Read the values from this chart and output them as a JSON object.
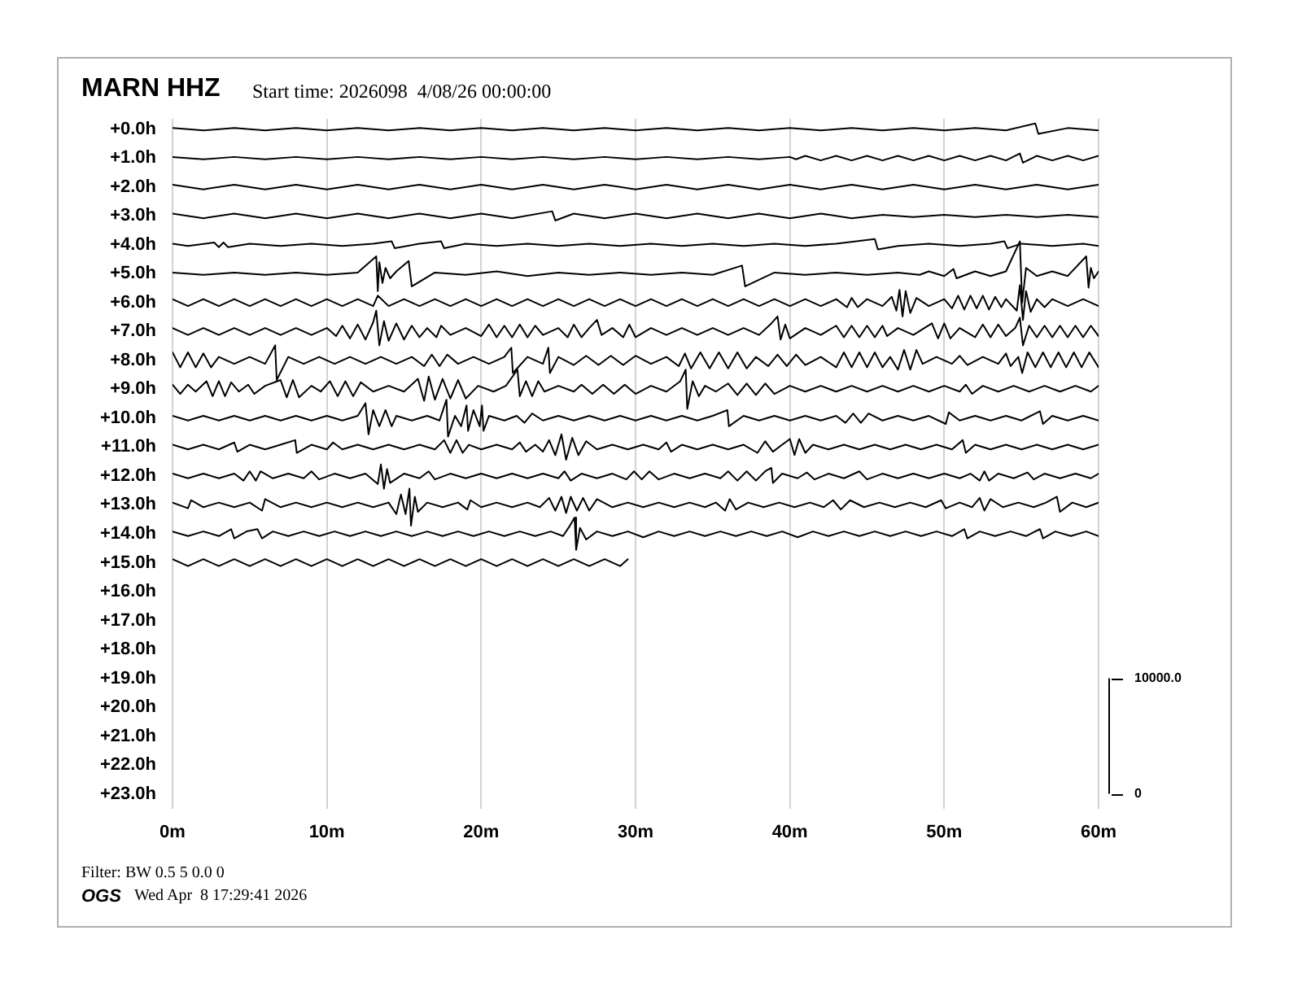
{
  "chart_data": {
    "type": "line",
    "title": "MARN HHZ",
    "subtitle": "Start time: 2026098  4/08/26 00:00:00",
    "annotations": [
      "Filter: BW 0.5 5 0.0 0",
      "OGS",
      "Wed Apr  8 17:29:41 2026"
    ],
    "xlim": [
      0,
      60
    ],
    "xticks": [
      {
        "value": 0,
        "label": "0m"
      },
      {
        "value": 10,
        "label": "10m"
      },
      {
        "value": 20,
        "label": "20m"
      },
      {
        "value": 30,
        "label": "30m"
      },
      {
        "value": 40,
        "label": "40m"
      },
      {
        "value": 50,
        "label": "50m"
      },
      {
        "value": 60,
        "label": "60m"
      }
    ],
    "ylim": [
      23.52,
      -0.36
    ],
    "yticks": [
      {
        "value": 0,
        "label": "+0.0h"
      },
      {
        "value": 1,
        "label": "+1.0h"
      },
      {
        "value": 2,
        "label": "+2.0h"
      },
      {
        "value": 3,
        "label": "+3.0h"
      },
      {
        "value": 4,
        "label": "+4.0h"
      },
      {
        "value": 5,
        "label": "+5.0h"
      },
      {
        "value": 6,
        "label": "+6.0h"
      },
      {
        "value": 7,
        "label": "+7.0h"
      },
      {
        "value": 8,
        "label": "+8.0h"
      },
      {
        "value": 9,
        "label": "+9.0h"
      },
      {
        "value": 10,
        "label": "+10.0h"
      },
      {
        "value": 11,
        "label": "+11.0h"
      },
      {
        "value": 12,
        "label": "+12.0h"
      },
      {
        "value": 13,
        "label": "+13.0h"
      },
      {
        "value": 14,
        "label": "+14.0h"
      },
      {
        "value": 15,
        "label": "+15.0h"
      },
      {
        "value": 16,
        "label": "+16.0h"
      },
      {
        "value": 17,
        "label": "+17.0h"
      },
      {
        "value": 18,
        "label": "+18.0h"
      },
      {
        "value": 19,
        "label": "+19.0h"
      },
      {
        "value": 20,
        "label": "+20.0h"
      },
      {
        "value": 21,
        "label": "+21.0h"
      },
      {
        "value": 22,
        "label": "+22.0h"
      },
      {
        "value": 23,
        "label": "+23.0h"
      }
    ],
    "y2lim": [
      -1300,
      58400
    ],
    "y2ticks": [
      0,
      {
        "value": 10000,
        "label": "10000.0"
      }
    ],
    "grid": "x",
    "series": [
      {
        "color": "#000000",
        "axis": "y2",
        "x": [
          0,
          2,
          4,
          6,
          8,
          10,
          12,
          14,
          16,
          18,
          20,
          22,
          24,
          26,
          28,
          30,
          32,
          34,
          36,
          38,
          40,
          42,
          44,
          46,
          48,
          50,
          52,
          54,
          55.9,
          56.1,
          58,
          60
        ],
        "values": [
          57600,
          57400,
          57600,
          57400,
          57600,
          57400,
          57600,
          57400,
          57600,
          57400,
          57600,
          57400,
          57600,
          57400,
          57600,
          57400,
          57600,
          57400,
          57600,
          57400,
          57600,
          57400,
          57600,
          57400,
          57600,
          57400,
          57600,
          57400,
          58000,
          57100,
          57600,
          57400
        ]
      },
      {
        "color": "#000000",
        "axis": "y2",
        "x": [
          0,
          2,
          4,
          6,
          8,
          10,
          12,
          14,
          16,
          18,
          20,
          22,
          24,
          26,
          28,
          30,
          32,
          34,
          36,
          38,
          40,
          40.4,
          41,
          42,
          43,
          44,
          45,
          46,
          47,
          48,
          49,
          50,
          51,
          52,
          53,
          54,
          54.9,
          55.1,
          56,
          57,
          58,
          59,
          60
        ],
        "values": [
          55100,
          54900,
          55100,
          54900,
          55100,
          54900,
          55100,
          54900,
          55100,
          54900,
          55100,
          54900,
          55100,
          54900,
          55100,
          54900,
          55100,
          54900,
          55100,
          54900,
          55100,
          54900,
          55200,
          54800,
          55200,
          54800,
          55200,
          54800,
          55200,
          54800,
          55200,
          54800,
          55200,
          54800,
          55200,
          54800,
          55400,
          54600,
          55200,
          54800,
          55200,
          54800,
          55200
        ]
      },
      {
        "color": "#000000",
        "axis": "y2",
        "x": [
          0,
          2,
          4,
          6,
          8,
          10,
          12,
          14,
          16,
          18,
          20,
          22,
          24,
          26,
          28,
          30,
          32,
          34,
          36,
          38,
          40,
          42,
          44,
          46,
          48,
          50,
          52,
          54,
          56,
          58,
          60
        ],
        "values": [
          52700,
          52300,
          52700,
          52300,
          52700,
          52300,
          52700,
          52300,
          52700,
          52300,
          52700,
          52300,
          52700,
          52300,
          52700,
          52300,
          52700,
          52300,
          52700,
          52300,
          52700,
          52300,
          52700,
          52300,
          52700,
          52300,
          52700,
          52300,
          52700,
          52300,
          52700
        ]
      },
      {
        "color": "#000000",
        "axis": "y2",
        "x": [
          0,
          2,
          4,
          6,
          8,
          10,
          12,
          14,
          16,
          18,
          20,
          22,
          24.6,
          24.8,
          26,
          28,
          30,
          32,
          34,
          36,
          38,
          40,
          42,
          44,
          46,
          48,
          50,
          52,
          54,
          56,
          58,
          60
        ],
        "values": [
          50200,
          49800,
          50200,
          49800,
          50200,
          49800,
          50200,
          49800,
          50200,
          49800,
          50200,
          49800,
          50400,
          49600,
          50200,
          49800,
          50200,
          49800,
          50200,
          49800,
          50200,
          49800,
          50200,
          49800,
          50100,
          49900,
          50100,
          49900,
          50100,
          49900,
          50100,
          49900
        ]
      },
      {
        "color": "#000000",
        "axis": "y2",
        "x": [
          0,
          1,
          2.7,
          3,
          3.3,
          3.6,
          5,
          7,
          9,
          11,
          13,
          14.2,
          14.4,
          16,
          17.4,
          17.6,
          19,
          21,
          23,
          25,
          27,
          29,
          31,
          33,
          35,
          37,
          39,
          41,
          43,
          45.5,
          45.7,
          47,
          49,
          51,
          53,
          53.9,
          54.1,
          55,
          57,
          59,
          60
        ],
        "values": [
          47600,
          47400,
          47700,
          47300,
          47700,
          47300,
          47600,
          47400,
          47600,
          47400,
          47600,
          47800,
          47200,
          47600,
          47800,
          47200,
          47600,
          47400,
          47600,
          47400,
          47600,
          47400,
          47600,
          47400,
          47600,
          47400,
          47600,
          47400,
          47600,
          48000,
          47100,
          47400,
          47600,
          47400,
          47600,
          47800,
          47200,
          47600,
          47400,
          47600,
          47400
        ]
      },
      {
        "color": "#000000",
        "axis": "y2",
        "x": [
          0,
          2,
          4,
          6,
          8,
          10,
          12,
          13.2,
          13.3,
          13.4,
          13.6,
          13.8,
          14.1,
          14.5,
          15.3,
          15.5,
          17,
          19,
          21,
          23,
          25,
          27,
          29,
          31,
          33,
          35,
          36.9,
          37.1,
          39,
          41,
          43,
          45,
          47,
          48.4,
          49,
          50,
          50.6,
          50.8,
          52,
          53,
          54,
          54.9,
          55.05,
          55.3,
          56,
          57,
          58,
          59.2,
          59.35,
          59.5,
          59.7,
          60
        ],
        "values": [
          45100,
          44900,
          45100,
          44900,
          45100,
          44900,
          45100,
          46500,
          43500,
          46000,
          44200,
          45500,
          44600,
          45200,
          46100,
          43900,
          45100,
          44900,
          45200,
          44800,
          45100,
          44900,
          45100,
          44900,
          45100,
          44900,
          45700,
          43900,
          45100,
          44900,
          45100,
          44900,
          45100,
          44900,
          45200,
          44800,
          45400,
          44600,
          45200,
          44800,
          45200,
          47800,
          42500,
          45500,
          44800,
          45200,
          44800,
          46500,
          43800,
          45500,
          44600,
          45200
        ]
      },
      {
        "color": "#000000",
        "axis": "y2",
        "x": [
          0,
          1,
          2,
          3,
          4,
          5,
          6,
          7,
          8,
          9,
          10,
          11,
          12,
          13,
          13.3,
          14,
          15,
          16,
          17,
          18,
          19,
          20,
          21,
          22,
          23,
          24,
          25,
          26,
          27,
          28,
          29,
          30,
          31,
          32,
          33,
          34,
          35,
          36,
          37,
          38,
          39,
          40,
          41,
          42,
          43,
          43.7,
          44,
          44.4,
          45,
          46,
          46.6,
          46.9,
          47.1,
          47.3,
          47.5,
          47.8,
          48.2,
          49,
          50,
          50.5,
          50.9,
          51.3,
          51.7,
          52.1,
          52.5,
          52.9,
          53.3,
          53.7,
          54,
          54.7,
          54.9,
          55.1,
          55.3,
          55.6,
          56,
          56.5,
          57,
          58,
          59,
          60
        ],
        "values": [
          42800,
          42200,
          42800,
          42200,
          42800,
          42200,
          42800,
          42200,
          42800,
          42200,
          42800,
          42200,
          42800,
          42200,
          43100,
          42200,
          42800,
          42200,
          42800,
          42200,
          42800,
          42200,
          42800,
          42200,
          42800,
          42200,
          42800,
          42200,
          42800,
          42200,
          42800,
          42200,
          42800,
          42200,
          42800,
          42200,
          42800,
          42200,
          42800,
          42200,
          42800,
          42200,
          42800,
          42200,
          42800,
          42100,
          42900,
          42100,
          42800,
          42200,
          43000,
          41800,
          43600,
          41300,
          43500,
          41600,
          42900,
          42200,
          42800,
          42000,
          43100,
          41900,
          43100,
          42000,
          43100,
          41900,
          43000,
          42100,
          42800,
          41800,
          44000,
          41000,
          43500,
          41700,
          42800,
          42100,
          42800,
          42200,
          42800,
          42200
        ]
      },
      {
        "color": "#000000",
        "axis": "y2",
        "x": [
          0,
          1,
          2,
          3,
          4,
          5,
          6,
          7,
          8,
          9,
          10,
          10.6,
          11,
          11.5,
          12,
          12.5,
          13,
          13.2,
          13.4,
          13.7,
          14,
          14.5,
          15,
          15.5,
          16,
          16.5,
          17.1,
          17.4,
          18,
          19,
          20,
          20.5,
          21,
          21.5,
          22,
          22.5,
          23,
          23.5,
          24,
          25,
          25.6,
          26,
          26.5,
          27,
          27.5,
          27.8,
          28.5,
          29.2,
          29.6,
          30,
          31,
          32,
          33,
          34,
          35,
          36,
          37,
          38,
          38.8,
          39.2,
          39.4,
          39.7,
          40,
          41,
          42,
          43,
          43.5,
          44,
          44.5,
          45,
          45.5,
          46,
          46.3,
          47,
          48,
          49.2,
          49.6,
          50,
          50.4,
          51,
          52,
          52.5,
          53,
          53.5,
          54,
          54.6,
          54.9,
          55.1,
          55.5,
          56,
          56.5,
          57,
          57.5,
          58,
          58.5,
          59,
          59.5,
          60
        ],
        "values": [
          40300,
          39700,
          40300,
          39700,
          40300,
          39700,
          40300,
          39700,
          40300,
          39700,
          40300,
          39600,
          40500,
          39400,
          40600,
          39300,
          40800,
          41800,
          38800,
          40900,
          39200,
          40700,
          39300,
          40500,
          39500,
          40300,
          39500,
          40500,
          39700,
          40300,
          39600,
          40600,
          39500,
          40500,
          39500,
          40600,
          39500,
          40500,
          39700,
          40300,
          39500,
          40600,
          39500,
          40300,
          41000,
          39700,
          40300,
          39500,
          40600,
          39500,
          40300,
          39700,
          40300,
          39700,
          40300,
          39700,
          40300,
          39700,
          40700,
          41300,
          39300,
          40600,
          39400,
          40300,
          39700,
          40500,
          39500,
          40500,
          39500,
          40500,
          39500,
          40500,
          39600,
          40300,
          39700,
          40700,
          39400,
          40700,
          39400,
          40300,
          39500,
          40600,
          39500,
          40600,
          39600,
          40300,
          41200,
          38800,
          40500,
          39500,
          40500,
          39500,
          40500,
          39500,
          40500,
          39500,
          40500,
          39600
        ]
      },
      {
        "color": "#000000",
        "axis": "y2",
        "x": [
          0,
          0.5,
          1,
          1.5,
          2,
          2.5,
          3,
          4,
          5,
          6,
          6.65,
          6.75,
          7.5,
          8.5,
          9.5,
          10.5,
          11.5,
          12.5,
          13.5,
          14.5,
          15.5,
          16.3,
          16.8,
          17.3,
          17.8,
          18.5,
          19.5,
          20.5,
          21.5,
          21.95,
          22.05,
          23,
          24,
          24.35,
          24.45,
          25,
          26,
          26.8,
          27.6,
          28.4,
          29.2,
          30,
          31,
          32,
          32.8,
          33.2,
          33.6,
          34.2,
          34.8,
          35.4,
          36,
          36.6,
          37.2,
          37.8,
          38.6,
          39.2,
          39.8,
          40.4,
          41,
          42,
          43,
          43.5,
          44,
          44.5,
          45,
          45.5,
          46,
          46.5,
          47,
          47.4,
          47.8,
          48.2,
          48.6,
          49.5,
          50.5,
          51,
          51.5,
          52.5,
          53.5,
          54,
          54.3,
          54.8,
          55.05,
          55.4,
          55.9,
          56.4,
          56.9,
          57.4,
          57.9,
          58.4,
          58.9,
          59.4,
          60
        ],
        "values": [
          38200,
          36900,
          38200,
          36900,
          38100,
          36900,
          37800,
          37200,
          37800,
          37200,
          38800,
          35800,
          37800,
          37200,
          37800,
          37200,
          37800,
          37200,
          37800,
          37200,
          37800,
          37000,
          38000,
          37000,
          38000,
          37200,
          37800,
          37200,
          37800,
          38600,
          36400,
          37800,
          37200,
          38600,
          36400,
          37800,
          37100,
          37900,
          37100,
          37900,
          37100,
          37900,
          37200,
          37800,
          37000,
          38100,
          36800,
          38200,
          36800,
          38200,
          36800,
          38200,
          36800,
          37800,
          37000,
          38000,
          37000,
          38000,
          37100,
          37800,
          36900,
          38200,
          36900,
          38200,
          36900,
          38200,
          36900,
          37800,
          36700,
          38400,
          36700,
          38400,
          37200,
          37800,
          37200,
          37900,
          37100,
          37800,
          37200,
          38100,
          37000,
          37800,
          36400,
          38200,
          36900,
          38200,
          36900,
          38200,
          36900,
          38200,
          36900,
          38200,
          36900
        ]
      },
      {
        "color": "#000000",
        "axis": "y2",
        "x": [
          0,
          0.5,
          1,
          1.5,
          2.2,
          2.6,
          3,
          3.4,
          3.8,
          4.3,
          4.9,
          5.3,
          6,
          7,
          7.4,
          7.8,
          8.2,
          9,
          9.6,
          10.2,
          10.7,
          11.2,
          11.7,
          12.2,
          13,
          14,
          15,
          15.9,
          16.3,
          16.6,
          17,
          17.5,
          18,
          18.5,
          19,
          19.8,
          20.8,
          21.6,
          22.35,
          22.5,
          22.9,
          23.3,
          23.7,
          24.1,
          25,
          26,
          26.5,
          27.2,
          27.9,
          28.6,
          29.3,
          30,
          31,
          32,
          32.9,
          33.25,
          33.35,
          33.7,
          34.1,
          34.5,
          35.2,
          36,
          36.6,
          37.2,
          37.8,
          38.4,
          39,
          40,
          41,
          42,
          43,
          44,
          45,
          46,
          47,
          48,
          49,
          50,
          51,
          51.4,
          51.8,
          52.5,
          53.5,
          54.5,
          55.5,
          56.5,
          57.5,
          58.5,
          59.5,
          60
        ],
        "values": [
          35400,
          34600,
          35400,
          34800,
          35700,
          34400,
          35700,
          34400,
          35600,
          34800,
          35400,
          34600,
          35300,
          35800,
          34300,
          35800,
          34300,
          35300,
          34800,
          35700,
          34400,
          35700,
          34400,
          35600,
          34800,
          35300,
          34800,
          35900,
          34000,
          36100,
          34100,
          35900,
          34200,
          35800,
          34200,
          35300,
          34800,
          35300,
          36700,
          34400,
          35700,
          34400,
          35700,
          34800,
          35300,
          34800,
          35400,
          34600,
          35400,
          34600,
          35400,
          34600,
          35300,
          34800,
          35700,
          36700,
          33300,
          35700,
          34400,
          35300,
          34800,
          35500,
          34500,
          35500,
          34500,
          35500,
          34600,
          35300,
          34800,
          35300,
          34800,
          35300,
          34800,
          35300,
          34800,
          35300,
          34800,
          35300,
          34800,
          35400,
          34600,
          35300,
          34800,
          35300,
          34800,
          35300,
          34800,
          35300,
          34800,
          35300
        ]
      },
      {
        "color": "#000000",
        "axis": "y2",
        "x": [
          0,
          1,
          2,
          3,
          4,
          5,
          6,
          7,
          8,
          9,
          10,
          11,
          12,
          12.5,
          12.7,
          13,
          13.4,
          13.8,
          14.2,
          14.5,
          15.5,
          16.5,
          17.3,
          17.75,
          17.85,
          18.3,
          18.7,
          19.05,
          19.15,
          19.5,
          19.9,
          20.05,
          20.15,
          20.5,
          21.5,
          22.3,
          22.8,
          23.3,
          24,
          25,
          26,
          27,
          28,
          29,
          30,
          31,
          32,
          33,
          34,
          35,
          35.95,
          36.05,
          37,
          38,
          39,
          40,
          41,
          42,
          43,
          43.6,
          44.1,
          44.6,
          45.1,
          46,
          47,
          48,
          49,
          50.1,
          50.3,
          51,
          52,
          53,
          54,
          55,
          56.2,
          56.4,
          57,
          58,
          59,
          60
        ],
        "values": [
          32700,
          32300,
          32700,
          32300,
          32700,
          32300,
          32700,
          32300,
          32700,
          32300,
          32700,
          32300,
          32700,
          33800,
          31100,
          33200,
          31800,
          33200,
          31800,
          32700,
          32300,
          32700,
          32300,
          34100,
          30900,
          32700,
          31800,
          33600,
          31400,
          33200,
          31800,
          33600,
          31400,
          32700,
          32300,
          32700,
          32100,
          32900,
          32300,
          32700,
          32300,
          32700,
          32300,
          32700,
          32300,
          32700,
          32300,
          32700,
          32300,
          32700,
          33200,
          31800,
          32700,
          32300,
          32700,
          32300,
          32700,
          32300,
          32700,
          32100,
          32900,
          32100,
          32900,
          32300,
          32700,
          32300,
          32700,
          32000,
          33000,
          32300,
          32700,
          32300,
          32700,
          32300,
          33100,
          32000,
          32700,
          32300,
          32700,
          32300
        ]
      },
      {
        "color": "#000000",
        "axis": "y2",
        "x": [
          0,
          1,
          2,
          3,
          4,
          4.2,
          5,
          6,
          7,
          7.95,
          8.05,
          9,
          10,
          10.4,
          11,
          12,
          13,
          14,
          15,
          16,
          17,
          17.6,
          18,
          18.4,
          18.8,
          19.2,
          20,
          21,
          22,
          22.5,
          22.9,
          23.5,
          24,
          24.4,
          24.8,
          25.2,
          25.5,
          25.9,
          26.3,
          26.8,
          27.5,
          28.5,
          29.5,
          30.5,
          31.5,
          32,
          32.3,
          33,
          34,
          35,
          36,
          37,
          37.9,
          38.4,
          38.9,
          39.5,
          40,
          40.3,
          40.6,
          41,
          41.5,
          42.5,
          43.5,
          44.5,
          45.5,
          46.5,
          47.5,
          48.5,
          49.5,
          50.5,
          51.2,
          51.4,
          52,
          53,
          54,
          55,
          56,
          57,
          58,
          59,
          60
        ],
        "values": [
          30200,
          29800,
          30200,
          29800,
          30400,
          29600,
          30200,
          29800,
          30200,
          30600,
          29500,
          30200,
          29800,
          30400,
          29800,
          30200,
          29800,
          30200,
          29800,
          30200,
          29800,
          30600,
          29500,
          30600,
          29500,
          30200,
          29800,
          30200,
          29800,
          30400,
          29600,
          30200,
          29600,
          30600,
          29300,
          31100,
          28900,
          30800,
          29300,
          30500,
          29800,
          30200,
          29800,
          30200,
          29800,
          30400,
          29600,
          30200,
          29800,
          30200,
          29800,
          30200,
          29500,
          30500,
          29600,
          30200,
          30700,
          29300,
          30700,
          29500,
          30200,
          29800,
          30200,
          29800,
          30200,
          29800,
          30200,
          29800,
          30200,
          29800,
          30600,
          29500,
          30200,
          29800,
          30200,
          29800,
          30200,
          29800,
          30200,
          29800,
          30200
        ]
      },
      {
        "color": "#000000",
        "axis": "y2",
        "x": [
          0,
          1,
          2,
          3,
          4,
          4.6,
          5,
          5.4,
          5.7,
          6.5,
          7.5,
          8.5,
          9,
          9.5,
          10.5,
          11.5,
          12.5,
          13.3,
          13.5,
          13.7,
          13.9,
          14.1,
          15,
          16,
          16.6,
          17,
          18,
          19,
          20,
          21,
          22,
          23,
          24,
          25,
          25.4,
          25.8,
          26.5,
          27.5,
          28.5,
          29.4,
          29.9,
          30.4,
          30.9,
          31.5,
          32.5,
          33.5,
          34.5,
          35.5,
          36,
          36.6,
          37.2,
          37.8,
          38.4,
          38.8,
          38.9,
          39.5,
          40.5,
          41.1,
          41.6,
          42.5,
          43.5,
          44.5,
          45,
          46,
          47,
          48,
          49,
          50,
          51,
          51.7,
          52.3,
          52.6,
          52.9,
          53.5,
          54.5,
          55.4,
          55.8,
          56.5,
          57.5,
          58.5,
          59.5,
          60
        ],
        "values": [
          27700,
          27300,
          27700,
          27300,
          27700,
          27100,
          27900,
          27100,
          27900,
          27300,
          27700,
          27300,
          27900,
          27200,
          27700,
          27300,
          27700,
          26800,
          28500,
          26400,
          28100,
          26900,
          27700,
          27300,
          27900,
          27200,
          27700,
          27300,
          27700,
          27300,
          27700,
          27300,
          27700,
          27300,
          27900,
          27100,
          27700,
          27300,
          27700,
          27200,
          27900,
          27200,
          27900,
          27200,
          27700,
          27300,
          27700,
          27300,
          27900,
          27100,
          27900,
          27100,
          27900,
          28200,
          26900,
          27700,
          27300,
          27800,
          27200,
          27700,
          27300,
          27900,
          27200,
          27700,
          27300,
          27700,
          27300,
          27700,
          27300,
          27700,
          27100,
          27900,
          27100,
          27700,
          27300,
          27800,
          27200,
          27700,
          27300,
          27700,
          27300,
          27700
        ]
      },
      {
        "color": "#000000",
        "axis": "y2",
        "x": [
          0,
          1,
          1.2,
          2,
          3,
          4,
          5,
          5.8,
          6,
          7,
          8,
          9,
          10,
          11,
          12,
          13,
          14,
          14.5,
          14.8,
          15.1,
          15.35,
          15.45,
          15.7,
          15.9,
          16.5,
          17.5,
          18.5,
          19.1,
          19.3,
          20,
          21,
          22,
          23,
          23.8,
          24.4,
          24.8,
          25.2,
          25.5,
          25.8,
          26.2,
          26.6,
          27,
          27.5,
          28.5,
          29.5,
          30.5,
          31.5,
          32.5,
          33.5,
          34.5,
          35.2,
          35.8,
          36.1,
          36.5,
          37.3,
          38.3,
          39.3,
          40.3,
          41.3,
          42.2,
          42.8,
          43.3,
          43.9,
          44.8,
          45.8,
          46.8,
          47.8,
          48.8,
          49.8,
          50.1,
          51,
          51.8,
          52.3,
          52.6,
          53,
          53.8,
          54.8,
          55.8,
          56.6,
          57.3,
          57.5,
          58.3,
          59.2,
          60
        ],
        "values": [
          25200,
          24700,
          25400,
          24800,
          25200,
          24800,
          25200,
          24500,
          25500,
          24800,
          25200,
          24800,
          25200,
          24800,
          25200,
          24800,
          25200,
          24200,
          25900,
          24200,
          26400,
          23200,
          25700,
          24400,
          25200,
          24800,
          25200,
          24600,
          25400,
          24800,
          25200,
          24800,
          25200,
          24800,
          25600,
          24500,
          25700,
          24300,
          25700,
          24500,
          25600,
          24500,
          25500,
          24800,
          25200,
          24800,
          25200,
          24800,
          25200,
          24800,
          25200,
          24500,
          25500,
          24600,
          25200,
          24800,
          25200,
          24800,
          25200,
          24800,
          25400,
          24600,
          25400,
          24800,
          25200,
          24800,
          25200,
          24800,
          25400,
          24700,
          25200,
          24800,
          25600,
          24500,
          25500,
          24800,
          25200,
          24800,
          25200,
          25700,
          24400,
          25200,
          24800,
          25200
        ]
      },
      {
        "color": "#000000",
        "axis": "y2",
        "x": [
          0,
          1,
          2,
          3,
          3.8,
          4,
          4.8,
          5.5,
          5.8,
          6.5,
          7.5,
          8.5,
          9.5,
          10.5,
          11.5,
          12.5,
          13.5,
          14.5,
          15.5,
          16.5,
          17.5,
          18.5,
          19.5,
          20.5,
          21.5,
          22.5,
          23.5,
          24.5,
          25.3,
          25.7,
          26.05,
          26.15,
          26.4,
          26.8,
          27.5,
          28.5,
          29.5,
          30.5,
          31.5,
          32.5,
          33.5,
          34.5,
          35.5,
          36.5,
          37.5,
          38.5,
          39.5,
          40.5,
          41.5,
          42.5,
          43.5,
          44.5,
          45.5,
          46.5,
          47.5,
          48.5,
          49.5,
          50.5,
          51.3,
          51.5,
          52.3,
          53.3,
          54.3,
          55.3,
          56.2,
          56.4,
          57.2,
          58.2,
          59.2,
          60
        ],
        "values": [
          22700,
          22300,
          22700,
          22300,
          22900,
          22100,
          22700,
          22900,
          22100,
          22700,
          22300,
          22700,
          22300,
          22700,
          22300,
          22700,
          22300,
          22700,
          22300,
          22700,
          22300,
          22700,
          22300,
          22700,
          22300,
          22700,
          22300,
          22700,
          22300,
          23100,
          23900,
          21100,
          23000,
          22000,
          22700,
          22300,
          22700,
          22200,
          22700,
          22300,
          22700,
          22300,
          22700,
          22300,
          22700,
          22300,
          22700,
          22200,
          22700,
          22300,
          22700,
          22300,
          22700,
          22300,
          22700,
          22300,
          22700,
          22300,
          22900,
          22100,
          22700,
          22300,
          22700,
          22300,
          22900,
          22100,
          22700,
          22300,
          22700,
          22300
        ]
      },
      {
        "color": "#000000",
        "axis": "y2",
        "x": [
          0,
          1,
          2,
          3,
          4,
          5,
          6,
          7,
          8,
          9,
          10,
          11,
          12,
          13,
          14,
          15,
          16,
          17,
          18,
          19,
          20,
          21,
          22,
          23,
          24,
          25,
          26,
          27,
          28,
          29,
          29.5
        ],
        "values": [
          20300,
          19700,
          20300,
          19700,
          20300,
          19700,
          20300,
          19700,
          20300,
          19700,
          20300,
          19700,
          20300,
          19700,
          20300,
          19700,
          20300,
          19700,
          20300,
          19700,
          20300,
          19700,
          20300,
          19700,
          20300,
          19700,
          20300,
          19700,
          20300,
          19700,
          20300
        ]
      }
    ]
  }
}
